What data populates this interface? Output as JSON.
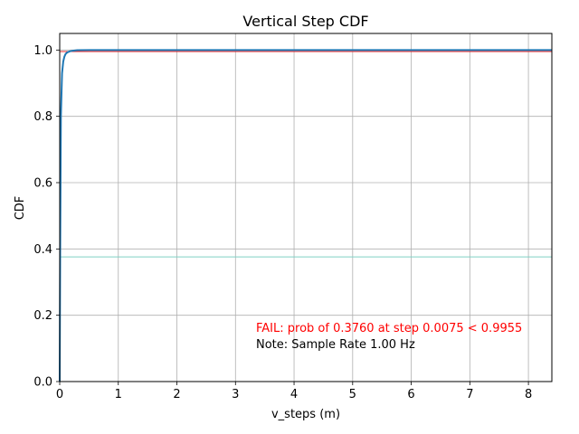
{
  "chart_data": {
    "type": "line",
    "title": "Vertical Step CDF",
    "xlabel": "v_steps (m)",
    "ylabel": "CDF",
    "xlim": [
      0,
      8.4
    ],
    "ylim": [
      0,
      1.05
    ],
    "x_ticks": [
      0,
      1,
      2,
      3,
      4,
      5,
      6,
      7,
      8
    ],
    "x_tick_labels": [
      "0",
      "1",
      "2",
      "3",
      "4",
      "5",
      "6",
      "7",
      "8"
    ],
    "y_ticks": [
      0.0,
      0.2,
      0.4,
      0.6,
      0.8,
      1.0
    ],
    "y_tick_labels": [
      "0.0",
      "0.2",
      "0.4",
      "0.6",
      "0.8",
      "1.0"
    ],
    "grid": true,
    "series": [
      {
        "color": "#1f77b4",
        "x": [
          0,
          0.0075,
          0.02,
          0.04,
          0.06,
          0.08,
          0.1,
          0.13,
          0.17,
          0.22,
          0.3,
          0.5,
          1.0,
          8.4
        ],
        "y": [
          0,
          0.376,
          0.8,
          0.93,
          0.965,
          0.98,
          0.988,
          0.993,
          0.996,
          0.998,
          0.9995,
          1.0,
          1.0,
          1.0
        ]
      }
    ],
    "reference_lines": [
      {
        "orientation": "horizontal",
        "y": 0.9955,
        "color": "#e8272b"
      },
      {
        "orientation": "horizontal",
        "y": 0.376,
        "color": "#7fd0c5"
      }
    ],
    "annotations": [
      {
        "text": "FAIL: prob of 0.3760 at step 0.0075 < 0.9955",
        "color": "#ff0000"
      },
      {
        "text": "Note: Sample Rate 1.00 Hz",
        "color": "#000000"
      }
    ]
  }
}
